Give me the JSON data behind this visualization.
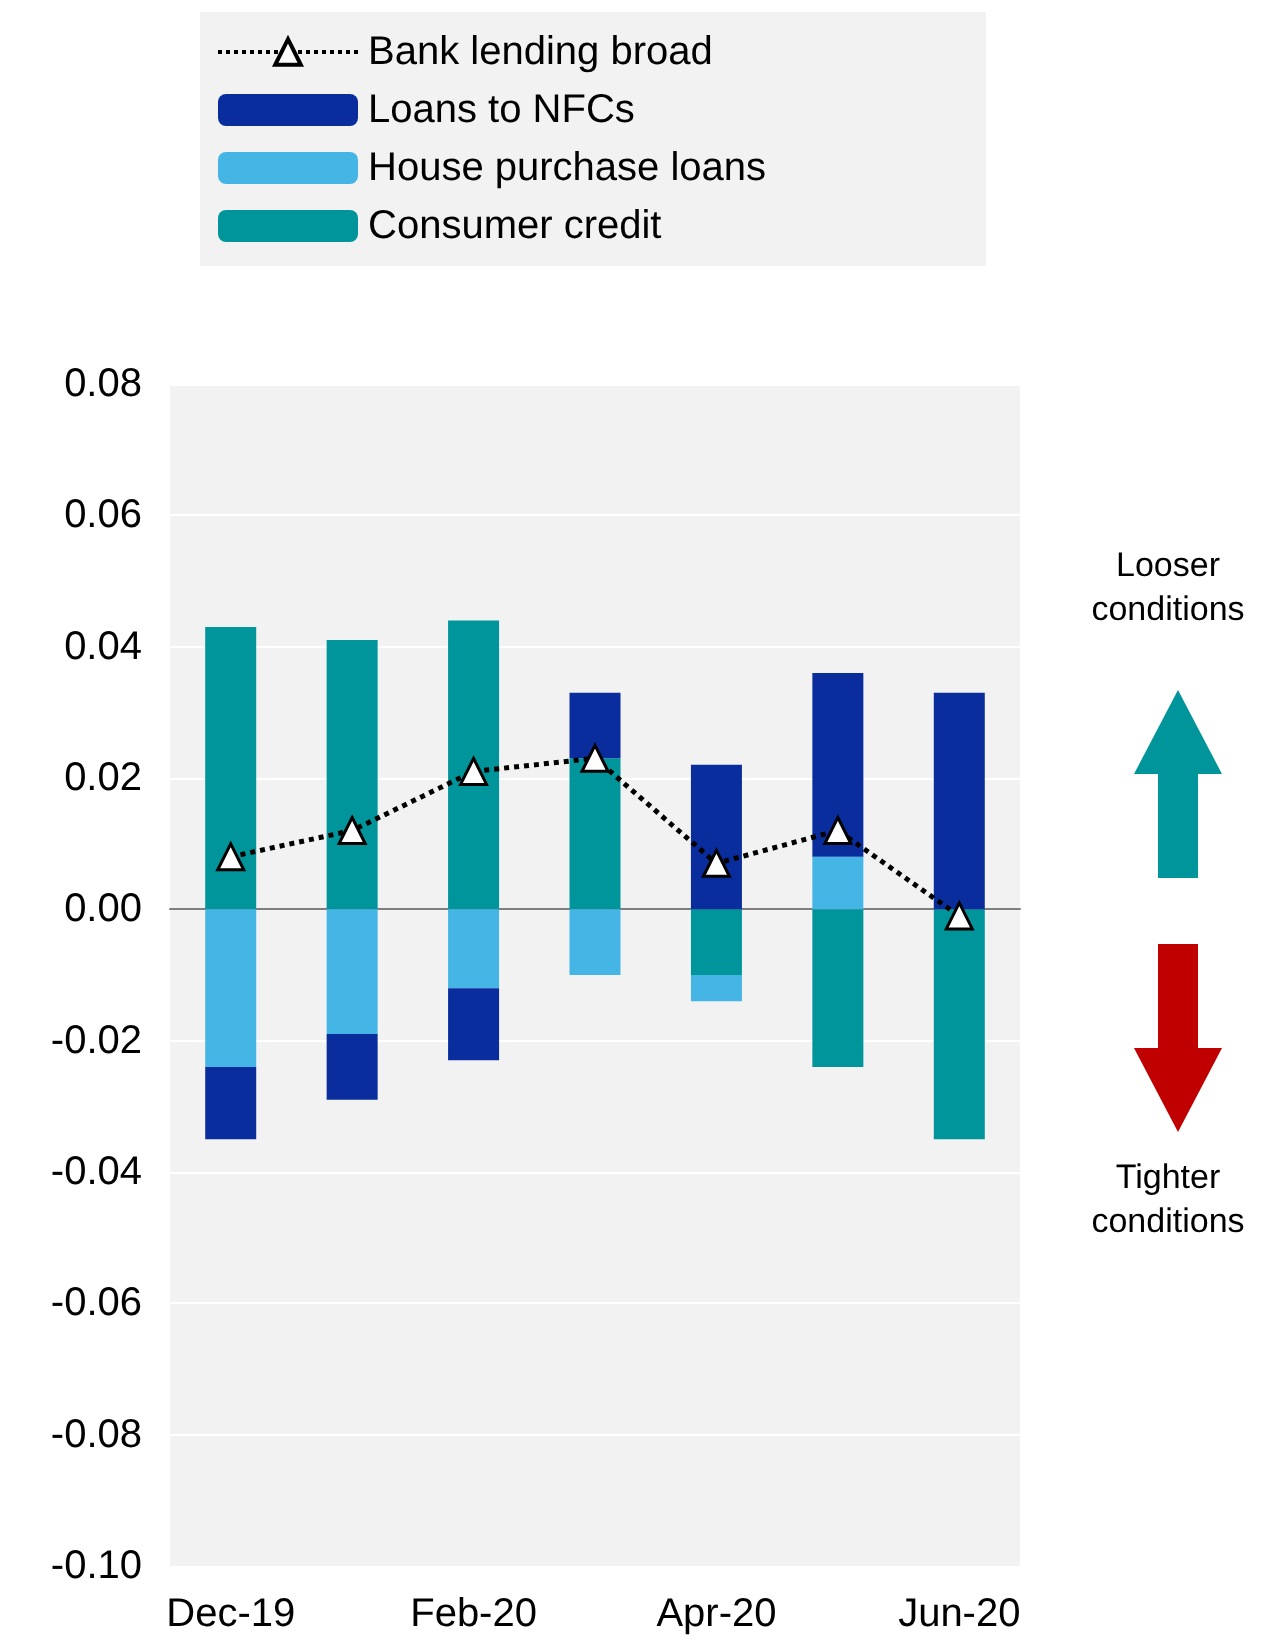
{
  "chart_data": {
    "type": "bar",
    "stacked": true,
    "categories": [
      "Dec-19",
      null,
      "Feb-20",
      null,
      "Apr-20",
      null,
      "Jun-20"
    ],
    "series": [
      {
        "name": "Consumer credit",
        "color": "#00959a",
        "values": [
          0.043,
          0.041,
          0.044,
          0.023,
          -0.01,
          -0.024,
          -0.035
        ]
      },
      {
        "name": "House purchase loans",
        "color": "#45b5e6",
        "values": [
          -0.024,
          -0.019,
          -0.012,
          -0.01,
          -0.004,
          0.008,
          null
        ]
      },
      {
        "name": "Loans to NFCs",
        "color": "#0a2d9e",
        "values": [
          -0.011,
          -0.01,
          -0.011,
          0.01,
          0.022,
          0.028,
          0.033
        ]
      },
      {
        "name": "Bank lending broad",
        "type": "line",
        "color": "#000000",
        "marker": "triangle",
        "line_style": "dotted",
        "values": [
          0.008,
          0.012,
          0.021,
          0.023,
          0.007,
          0.012,
          -0.001
        ]
      }
    ],
    "ylim": [
      -0.1,
      0.08
    ],
    "yticks": [
      {
        "value": -0.1,
        "label": "-0.10"
      },
      {
        "value": -0.08,
        "label": "-0.08"
      },
      {
        "value": -0.06,
        "label": "-0.06"
      },
      {
        "value": -0.04,
        "label": "-0.04"
      },
      {
        "value": -0.02,
        "label": "-0.02"
      },
      {
        "value": 0,
        "label": "0.00"
      },
      {
        "value": 0.02,
        "label": "0.02"
      },
      {
        "value": 0.04,
        "label": "0.04"
      },
      {
        "value": 0.06,
        "label": "0.06"
      },
      {
        "value": 0.08,
        "label": "0.08"
      }
    ],
    "grid": "y",
    "legend": "top",
    "annotations": [
      "Looser conditions",
      "Tighter conditions"
    ]
  }
}
